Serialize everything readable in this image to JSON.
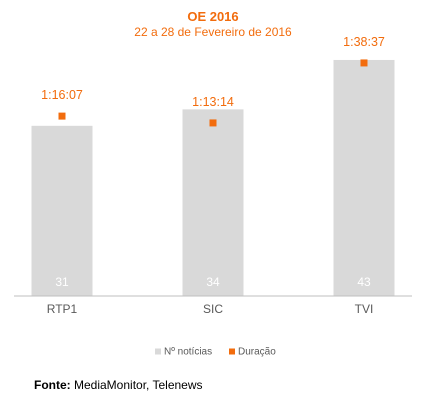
{
  "chart_data": {
    "type": "bar",
    "title": "OE 2016",
    "subtitle": "22 a 28 de Fevereiro de 2016",
    "categories": [
      "RTP1",
      "SIC",
      "TVI"
    ],
    "series": [
      {
        "name": "Nº notícias",
        "kind": "bar",
        "values": [
          31,
          34,
          43
        ],
        "color": "#d9d9d9"
      },
      {
        "name": "Duração",
        "kind": "marker",
        "values": [
          "1:16:07",
          "1:13:14",
          "1:38:37"
        ],
        "color": "#f26c0d"
      }
    ],
    "ylim": [
      0,
      47
    ],
    "duration_ylim_seconds": [
      0,
      6550
    ],
    "legend_position": "bottom",
    "grid": false,
    "colors": {
      "accent": "#f26c0d",
      "bar": "#d9d9d9",
      "axis": "#bfbfbf",
      "text": "#595959",
      "bar_label": "#ffffff"
    }
  },
  "source": {
    "label": "Fonte:",
    "text": "MediaMonitor, Telenews"
  }
}
